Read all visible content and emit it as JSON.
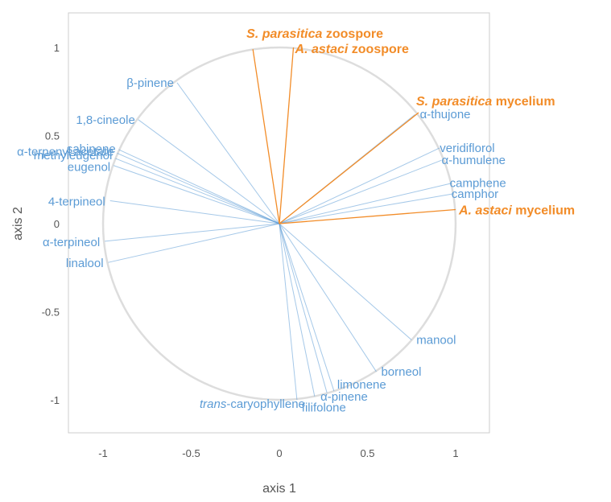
{
  "chart_data": {
    "type": "scatter",
    "subtype": "correlation-circle",
    "title": "",
    "xlabel": "axis 1",
    "ylabel": "axis 2",
    "xlim": [
      -1.2,
      1.2
    ],
    "ylim": [
      -1.18,
      1.18
    ],
    "xticks": [
      -1,
      -0.5,
      0,
      0.5,
      1
    ],
    "xtick_labels": [
      "-1",
      "-0.5",
      "0",
      "0.5",
      "1"
    ],
    "yticks": [
      -1,
      -0.5,
      0,
      0.5,
      1
    ],
    "ytick_labels": [
      "-1",
      "-0.5",
      "0",
      "0.5",
      "1"
    ],
    "grid": false,
    "unit_circle": true,
    "colors": {
      "variables": "#5b9bd5",
      "groups": "#f28c28",
      "circle": "#dddddd",
      "frame": "#cccccc"
    },
    "series": [
      {
        "color": "#5b9bd5",
        "points": [
          {
            "label": "β-pinene",
            "x": -0.58,
            "y": 0.8
          },
          {
            "label": "1,8-cineole",
            "x": -0.8,
            "y": 0.59
          },
          {
            "label": "sabinene",
            "x": -0.91,
            "y": 0.42
          },
          {
            "label": "α-terpenyl acetate",
            "x": -0.92,
            "y": 0.4
          },
          {
            "label": "methyleugenol",
            "x": -0.93,
            "y": 0.37
          },
          {
            "label": "eugenol",
            "x": -0.94,
            "y": 0.33
          },
          {
            "label": "4-terpineol",
            "x": -0.96,
            "y": 0.13
          },
          {
            "label": "α-terpineol",
            "x": -0.99,
            "y": -0.1
          },
          {
            "label": "linalool",
            "x": -0.97,
            "y": -0.22
          },
          {
            "label": "α-thujone",
            "x": 0.77,
            "y": 0.62
          },
          {
            "label": "veridiflorol",
            "x": 0.91,
            "y": 0.43
          },
          {
            "label": "α-humulene",
            "x": 0.92,
            "y": 0.36
          },
          {
            "label": "camphene",
            "x": 0.98,
            "y": 0.23
          },
          {
            "label": "camphor",
            "x": 0.99,
            "y": 0.17
          },
          {
            "label": "manool",
            "x": 0.75,
            "y": -0.66
          },
          {
            "label": "borneol",
            "x": 0.55,
            "y": -0.84
          },
          {
            "label": "limonene",
            "x": 0.31,
            "y": -0.95
          },
          {
            "label": "α-pinene",
            "x": 0.27,
            "y": -0.96
          },
          {
            "label": "filifolone",
            "x": 0.2,
            "y": -0.98
          },
          {
            "label": "trans-caryophyllene",
            "x": 0.1,
            "y": -1.0
          }
        ]
      },
      {
        "color": "#f28c28",
        "points": [
          {
            "label_italic": "S. parasitica",
            "label_rest": " zoospore",
            "x": -0.15,
            "y": 0.99
          },
          {
            "label_italic": "A. astaci",
            "label_rest": " zoospore",
            "x": 0.08,
            "y": 1.0
          },
          {
            "label_italic": "S. parasitica",
            "label_rest": " mycelium",
            "x": 0.79,
            "y": 0.63
          },
          {
            "label_italic": "A. astaci",
            "label_rest": " mycelium",
            "x": 1.0,
            "y": 0.08
          }
        ]
      }
    ]
  }
}
